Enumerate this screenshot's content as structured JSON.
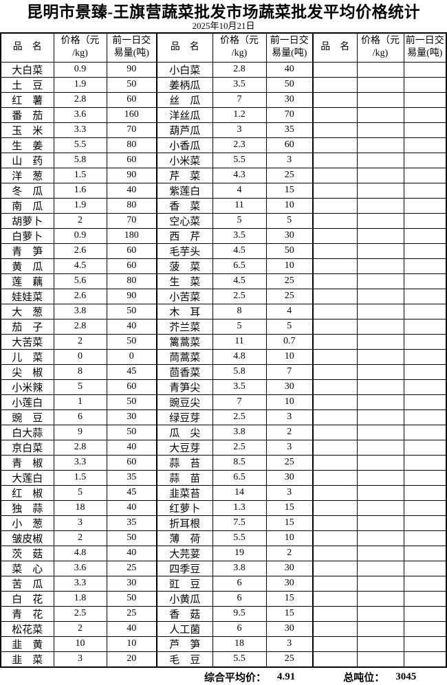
{
  "title": "昆明市景臻-王旗营蔬菜批发市场蔬菜批发平均价格统计",
  "date": "2025年10月21日",
  "table": {
    "row_count": 40,
    "headers": {
      "name": "品　名",
      "price_lines": [
        "价格（元",
        "/kg)"
      ],
      "volume_lines": [
        "前一日交",
        "易量(吨)"
      ]
    },
    "col1": [
      [
        "大白菜",
        "0.9",
        "90"
      ],
      [
        "土豆",
        "1.9",
        "50"
      ],
      [
        "红薯",
        "2.8",
        "60"
      ],
      [
        "番茄",
        "3.6",
        "160"
      ],
      [
        "玉米",
        "3.3",
        "70"
      ],
      [
        "生姜",
        "5.5",
        "80"
      ],
      [
        "山药",
        "5.8",
        "60"
      ],
      [
        "洋葱",
        "1.5",
        "90"
      ],
      [
        "冬瓜",
        "1.6",
        "40"
      ],
      [
        "南瓜",
        "1.9",
        "80"
      ],
      [
        "胡萝卜",
        "2",
        "70"
      ],
      [
        "白萝卜",
        "0.9",
        "180"
      ],
      [
        "青笋",
        "2.6",
        "60"
      ],
      [
        "黄瓜",
        "4.5",
        "60"
      ],
      [
        "莲藕",
        "5.6",
        "80"
      ],
      [
        "娃娃菜",
        "2.6",
        "90"
      ],
      [
        "大葱",
        "3.8",
        "50"
      ],
      [
        "茄子",
        "2.8",
        "40"
      ],
      [
        "大苦菜",
        "2",
        "50"
      ],
      [
        "儿菜",
        "0",
        "0"
      ],
      [
        "尖椒",
        "8",
        "45"
      ],
      [
        "小米辣",
        "5",
        "60"
      ],
      [
        "小莲白",
        "1",
        "50"
      ],
      [
        "豌豆",
        "6",
        "30"
      ],
      [
        "白大蒜",
        "9",
        "50"
      ],
      [
        "京白菜",
        "2.8",
        "40"
      ],
      [
        "青椒",
        "3.3",
        "60"
      ],
      [
        "大莲白",
        "1.5",
        "35"
      ],
      [
        "红椒",
        "5",
        "45"
      ],
      [
        "独蒜",
        "18",
        "40"
      ],
      [
        "小葱",
        "3",
        "35"
      ],
      [
        "皱皮椒",
        "2",
        "50"
      ],
      [
        "茨菇",
        "4.8",
        "40"
      ],
      [
        "菜心",
        "3.6",
        "25"
      ],
      [
        "苦瓜",
        "3.3",
        "30"
      ],
      [
        "白花",
        "1.8",
        "50"
      ],
      [
        "青花",
        "2.5",
        "25"
      ],
      [
        "松花菜",
        "2",
        "40"
      ],
      [
        "韭黄",
        "10",
        "10"
      ],
      [
        "韭菜",
        "3",
        "20"
      ]
    ],
    "col2": [
      [
        "小白菜",
        "2.8",
        "40"
      ],
      [
        "姜柄瓜",
        "3.5",
        "50"
      ],
      [
        "丝瓜",
        "7",
        "30"
      ],
      [
        "洋丝瓜",
        "1.2",
        "70"
      ],
      [
        "葫芦瓜",
        "3",
        "35"
      ],
      [
        "小香瓜",
        "2.3",
        "60"
      ],
      [
        "小米菜",
        "5.5",
        "3"
      ],
      [
        "芹菜",
        "4.3",
        "25"
      ],
      [
        "紫莲白",
        "4",
        "15"
      ],
      [
        "香菜",
        "11",
        "10"
      ],
      [
        "空心菜",
        "5",
        "5"
      ],
      [
        "西芹",
        "3.5",
        "30"
      ],
      [
        "毛芋头",
        "4.5",
        "50"
      ],
      [
        "菠菜",
        "6.5",
        "10"
      ],
      [
        "生菜",
        "4.5",
        "25"
      ],
      [
        "小苦菜",
        "2.5",
        "25"
      ],
      [
        "木耳",
        "8",
        "4"
      ],
      [
        "芥兰菜",
        "5",
        "5"
      ],
      [
        "篱蒿菜",
        "11",
        "0.7"
      ],
      [
        "茼蒿菜",
        "4.8",
        "10"
      ],
      [
        "茴香菜",
        "5.8",
        "7"
      ],
      [
        "青笋尖",
        "3.5",
        "30"
      ],
      [
        "豌豆尖",
        "7",
        "10"
      ],
      [
        "绿豆芽",
        "2.5",
        "3"
      ],
      [
        "瓜尖",
        "3.8",
        "2"
      ],
      [
        "大豆芽",
        "2.5",
        "3"
      ],
      [
        "蒜苔",
        "8.5",
        "25"
      ],
      [
        "蒜苗",
        "6.5",
        "30"
      ],
      [
        "韭菜苔",
        "14",
        "3"
      ],
      [
        "红萝卜",
        "1.3",
        "15"
      ],
      [
        "折耳根",
        "7.5",
        "15"
      ],
      [
        "薄荷",
        "5.5",
        "10"
      ],
      [
        "大芫荽",
        "19",
        "2"
      ],
      [
        "四季豆",
        "3.8",
        "30"
      ],
      [
        "豇豆",
        "6",
        "30"
      ],
      [
        "小黄瓜",
        "6",
        "15"
      ],
      [
        "香菇",
        "9.5",
        "15"
      ],
      [
        "人工菌",
        "6",
        "30"
      ],
      [
        "芦笋",
        "18",
        "3"
      ],
      [
        "毛豆",
        "5.5",
        "25"
      ]
    ],
    "col3": []
  },
  "footer": {
    "avg_label": "综合平均价：",
    "avg_value": "4.91",
    "tonnage_label": "总吨位：",
    "tonnage_value": "3045"
  }
}
